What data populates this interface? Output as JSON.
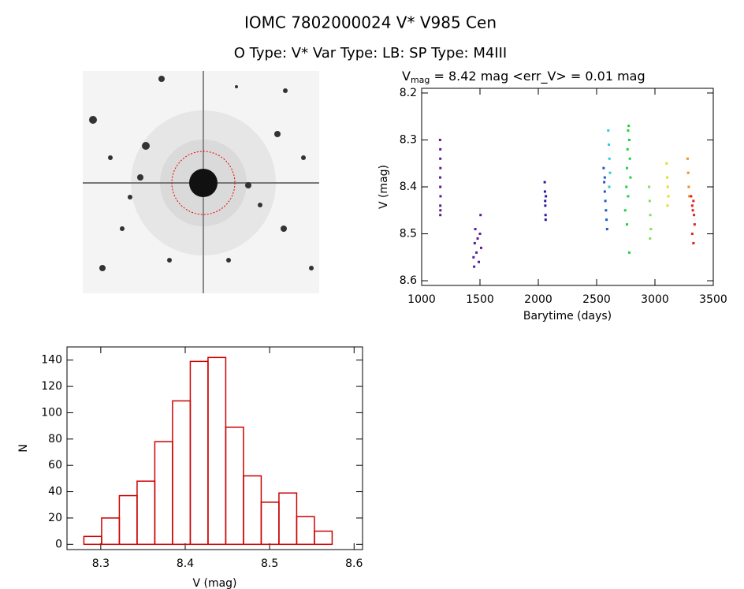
{
  "header": {
    "title": "IOMC 7802000024    V* V985 Cen",
    "subtitle": "O Type: V*  Var Type: LB:  SP Type: M4III"
  },
  "chart_data": [
    {
      "type": "scatter",
      "title": {
        "main": "V",
        "sub": "mag",
        "rest": " = 8.42 mag <err_V> = 0.01 mag"
      },
      "x_label": "Barytime (days)",
      "y_label": "V (mag)",
      "xlim": [
        1000,
        3500
      ],
      "xticks": [
        1000,
        1500,
        2000,
        2500,
        3000,
        3500
      ],
      "ylim": [
        8.61,
        8.19
      ],
      "yticks": [
        8.2,
        8.3,
        8.4,
        8.5,
        8.6
      ],
      "series": [
        {
          "color": "#5c1a8c",
          "x": [
            1158,
            1160,
            1160,
            1161,
            1159,
            1160,
            1162,
            1160,
            1161,
            1160
          ],
          "values": [
            8.3,
            8.32,
            8.34,
            8.36,
            8.38,
            8.4,
            8.42,
            8.44,
            8.45,
            8.46
          ]
        },
        {
          "color": "#5a1a9a",
          "x": [
            1445,
            1450,
            1455,
            1460,
            1470,
            1480,
            1490,
            1500,
            1505,
            1510
          ],
          "values": [
            8.55,
            8.57,
            8.52,
            8.49,
            8.54,
            8.51,
            8.56,
            8.5,
            8.46,
            8.53
          ]
        },
        {
          "color": "#2a1a9a",
          "x": [
            2055,
            2057,
            2059,
            2060,
            2062,
            2063,
            2065
          ],
          "values": [
            8.39,
            8.41,
            8.43,
            8.44,
            8.46,
            8.47,
            8.42
          ]
        },
        {
          "color": "#1a5acc",
          "x": [
            2560,
            2565,
            2570,
            2575,
            2580,
            2585,
            2590,
            2570
          ],
          "values": [
            8.36,
            8.39,
            8.41,
            8.43,
            8.45,
            8.47,
            8.49,
            8.38
          ]
        },
        {
          "color": "#30c8e0",
          "x": [
            2600,
            2605,
            2610,
            2615,
            2608
          ],
          "values": [
            8.28,
            8.31,
            8.34,
            8.37,
            8.4
          ]
        },
        {
          "color": "#20d040",
          "x": [
            2745,
            2755,
            2760,
            2765,
            2770,
            2775,
            2780,
            2785,
            2790,
            2770,
            2760,
            2780
          ],
          "values": [
            8.45,
            8.4,
            8.36,
            8.32,
            8.28,
            8.27,
            8.3,
            8.34,
            8.38,
            8.42,
            8.48,
            8.54
          ]
        },
        {
          "color": "#80e060",
          "x": [
            2950,
            2955,
            2960,
            2965,
            2958
          ],
          "values": [
            8.4,
            8.43,
            8.46,
            8.49,
            8.51
          ]
        },
        {
          "color": "#e0e020",
          "x": [
            3100,
            3105,
            3110,
            3115,
            3108
          ],
          "values": [
            8.35,
            8.38,
            8.4,
            8.42,
            8.44
          ]
        },
        {
          "color": "#f09020",
          "x": [
            3280,
            3285,
            3290,
            3295
          ],
          "values": [
            8.34,
            8.37,
            8.4,
            8.42
          ]
        },
        {
          "color": "#e02020",
          "x": [
            3310,
            3320,
            3325,
            3330,
            3335,
            3340,
            3320,
            3330
          ],
          "values": [
            8.42,
            8.44,
            8.45,
            8.43,
            8.46,
            8.48,
            8.5,
            8.52
          ]
        }
      ]
    },
    {
      "type": "histogram",
      "x_label": "V (mag)",
      "y_label": "N",
      "color": "#cc0000",
      "bins": [
        8.28,
        8.301,
        8.322,
        8.343,
        8.364,
        8.385,
        8.406,
        8.427,
        8.448,
        8.469,
        8.49,
        8.511,
        8.532,
        8.553,
        8.574
      ],
      "values": [
        6,
        20,
        37,
        48,
        78,
        109,
        139,
        142,
        89,
        52,
        32,
        39,
        21,
        10
      ],
      "xlim": [
        8.26,
        8.61
      ],
      "xticks": [
        8.3,
        8.4,
        8.5,
        8.6
      ],
      "ylim": [
        -4,
        150
      ],
      "yticks": [
        0,
        20,
        40,
        60,
        80,
        100,
        120,
        140
      ]
    }
  ]
}
